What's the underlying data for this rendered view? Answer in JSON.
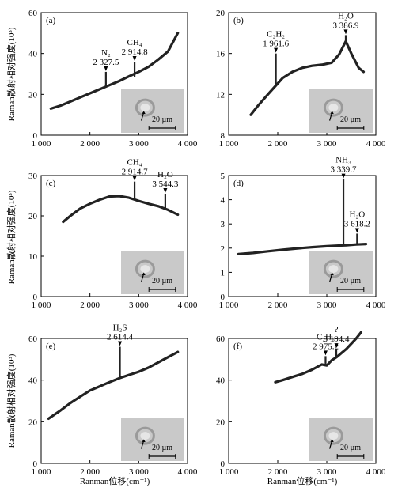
{
  "chart_data": [
    {
      "type": "line",
      "panel_label": "(a)",
      "xlim": [
        1000,
        4000
      ],
      "ylim": [
        0,
        60
      ],
      "xticks": [
        "1 000",
        "2 000",
        "3 000",
        "4 000"
      ],
      "yticks": [
        "0",
        "20",
        "40",
        "60"
      ],
      "series": [
        {
          "x": [
            1200,
            1400,
            1600,
            1800,
            2000,
            2200,
            2400,
            2600,
            2800,
            3000,
            3200,
            3400,
            3600,
            3800
          ],
          "y": [
            13,
            14.5,
            16.5,
            18.5,
            20.5,
            22.5,
            24.5,
            26.5,
            28.8,
            31,
            33.5,
            37,
            41,
            50
          ]
        }
      ],
      "peaks": [
        {
          "label_lines": [
            "N₂",
            "2 327.5"
          ],
          "x": 2327.5,
          "y_base": 24,
          "y_top": 31
        },
        {
          "label_lines": [
            "CH₄",
            "2 914.8"
          ],
          "x": 2914.8,
          "y_base": 28.5,
          "y_top": 36
        }
      ],
      "inset": {
        "scale_text": "20 µm"
      }
    },
    {
      "type": "line",
      "panel_label": "(b)",
      "xlim": [
        1000,
        4000
      ],
      "ylim": [
        8,
        20
      ],
      "xticks": [
        "1 000",
        "2 000",
        "3 000",
        "4 000"
      ],
      "yticks": [
        "8",
        "12",
        "16",
        "20"
      ],
      "series": [
        {
          "x": [
            1450,
            1600,
            1800,
            1950,
            2100,
            2300,
            2500,
            2700,
            2900,
            3100,
            3250,
            3386.9,
            3500,
            3650,
            3750
          ],
          "y": [
            10,
            10.9,
            12,
            12.8,
            13.6,
            14.2,
            14.6,
            14.8,
            14.9,
            15.1,
            15.9,
            17.2,
            16,
            14.6,
            14.2
          ]
        }
      ],
      "peaks": [
        {
          "label_lines": [
            "C₂H₂",
            "1 961.6"
          ],
          "x": 1961.6,
          "y_base": 13,
          "y_top": 16
        },
        {
          "label_lines": [
            "H₂O",
            "3 386.9"
          ],
          "x": 3386.9,
          "y_base": 17.2,
          "y_top": 17.8
        }
      ],
      "inset": {
        "scale_text": "20 µm"
      }
    },
    {
      "type": "line",
      "panel_label": "(c)",
      "xlim": [
        1000,
        4000
      ],
      "ylim": [
        0,
        30
      ],
      "xticks": [
        "1 000",
        "2 000",
        "3 000",
        "4 000"
      ],
      "yticks": [
        "0",
        "10",
        "20",
        "30"
      ],
      "series": [
        {
          "x": [
            1450,
            1600,
            1800,
            2000,
            2200,
            2400,
            2600,
            2800,
            3000,
            3200,
            3400,
            3600,
            3800
          ],
          "y": [
            18.5,
            20,
            21.8,
            23,
            24,
            24.8,
            24.9,
            24.5,
            23.7,
            23,
            22.4,
            21.5,
            20.3
          ]
        }
      ],
      "peaks": [
        {
          "label_lines": [
            "CH₄",
            "2 914.7"
          ],
          "x": 2914.7,
          "y_base": 24.2,
          "y_top": 28.5
        },
        {
          "label_lines": [
            "H₂O",
            "3 544.3"
          ],
          "x": 3544.3,
          "y_base": 21.7,
          "y_top": 25.5
        }
      ],
      "inset": {
        "scale_text": "20 µm"
      }
    },
    {
      "type": "line",
      "panel_label": "(d)",
      "xlim": [
        1000,
        4000
      ],
      "ylim": [
        0,
        5
      ],
      "xticks": [
        "1 000",
        "2 000",
        "3 000",
        "4 000"
      ],
      "yticks": [
        "0",
        "1",
        "2",
        "3",
        "4",
        "5"
      ],
      "series": [
        {
          "x": [
            1200,
            1500,
            1800,
            2100,
            2400,
            2700,
            3000,
            3200,
            3400,
            3600,
            3800
          ],
          "y": [
            1.75,
            1.8,
            1.87,
            1.93,
            1.99,
            2.04,
            2.08,
            2.1,
            2.12,
            2.15,
            2.17
          ]
        }
      ],
      "peaks": [
        {
          "label_lines": [
            "NH₃",
            "3 339.7"
          ],
          "x": 3339.7,
          "y_base": 2.11,
          "y_top": 4.85
        },
        {
          "label_lines": [
            "H₂O",
            "3 618.2"
          ],
          "x": 3618.2,
          "y_base": 2.16,
          "y_top": 2.6
        }
      ],
      "inset": {
        "scale_text": "20 µm"
      }
    },
    {
      "type": "line",
      "panel_label": "(e)",
      "xlim": [
        1000,
        4000
      ],
      "ylim": [
        0,
        60
      ],
      "xticks": [
        "1 000",
        "2 000",
        "3 000",
        "4 000"
      ],
      "yticks": [
        "0",
        "20",
        "40",
        "60"
      ],
      "series": [
        {
          "x": [
            1150,
            1400,
            1600,
            1800,
            2000,
            2200,
            2400,
            2614.4,
            2800,
            3000,
            3200,
            3400,
            3600,
            3800
          ],
          "y": [
            21.5,
            25.5,
            29,
            32,
            35,
            37,
            39,
            41,
            42.5,
            44,
            46,
            48.5,
            51,
            53.5
          ]
        }
      ],
      "peaks": [
        {
          "label_lines": [
            "H₂S",
            "2 614.4"
          ],
          "x": 2614.4,
          "y_base": 40.8,
          "y_top": 56
        }
      ],
      "inset": {
        "scale_text": "20 µm"
      }
    },
    {
      "type": "line",
      "panel_label": "(f)",
      "xlim": [
        1000,
        4000
      ],
      "ylim": [
        0,
        60
      ],
      "xticks": [
        "1 000",
        "2 000",
        "3 000",
        "4 000"
      ],
      "yticks": [
        "0",
        "20",
        "40",
        "60"
      ],
      "series": [
        {
          "x": [
            1950,
            2100,
            2300,
            2500,
            2700,
            2900,
            3000,
            3100,
            3200,
            3300,
            3400,
            3500,
            3600,
            3700
          ],
          "y": [
            39,
            40,
            41.5,
            43,
            45,
            47.5,
            47,
            49.5,
            51,
            53,
            55,
            57.5,
            60,
            63
          ]
        }
      ],
      "peaks": [
        {
          "label_lines": [
            "C₂H₆",
            "2 975.2"
          ],
          "x": 2975.2,
          "y_base": 47.3,
          "y_top": 51.5
        },
        {
          "label_lines": [
            "?",
            "3 194.4"
          ],
          "x": 3194.4,
          "y_base": 51,
          "y_top": 55
        }
      ],
      "inset": {
        "scale_text": "20 µm"
      }
    }
  ],
  "ylabel": "Raman散射相对强度(10³)",
  "xlabel": "Ranman位移(cm⁻¹)",
  "colors": {
    "line": "#222222",
    "inset_bg": "#c9c9c9",
    "inset_dark": "#9a9a9a"
  }
}
